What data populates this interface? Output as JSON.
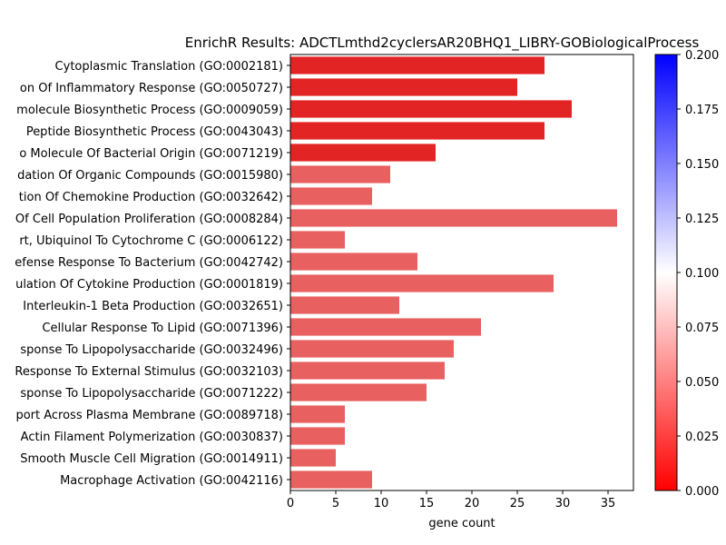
{
  "chart_data": {
    "type": "bar",
    "orientation": "horizontal",
    "title": "EnrichR Results: ADCTLmthd2cyclersAR20BHQ1_LIBRY-GOBiologicalProcess",
    "xlabel": "gene count",
    "ylabel": "",
    "xlim": [
      0,
      37.8
    ],
    "x_ticks": [
      "0",
      "5",
      "10",
      "15",
      "20",
      "25",
      "30",
      "35"
    ],
    "x_tick_values": [
      0,
      5,
      10,
      15,
      20,
      25,
      30,
      35
    ],
    "grid": false,
    "categories": [
      "Cytoplasmic Translation (GO:0002181)",
      "on Of Inflammatory Response (GO:0050727)",
      "molecule Biosynthetic Process (GO:0009059)",
      "Peptide Biosynthetic Process (GO:0043043)",
      "o Molecule Of Bacterial Origin (GO:0071219)",
      "dation Of Organic Compounds (GO:0015980)",
      "tion Of Chemokine Production (GO:0032642)",
      "Of Cell Population Proliferation (GO:0008284)",
      "rt, Ubiquinol To Cytochrome C (GO:0006122)",
      "efense Response To Bacterium (GO:0042742)",
      "ulation Of Cytokine Production (GO:0001819)",
      "Interleukin-1 Beta Production (GO:0032651)",
      "Cellular Response To Lipid (GO:0071396)",
      "sponse To Lipopolysaccharide (GO:0032496)",
      "Response To External Stimulus (GO:0032103)",
      "sponse To Lipopolysaccharide (GO:0071222)",
      "port Across Plasma Membrane (GO:0089718)",
      "Actin Filament Polymerization (GO:0030837)",
      "Smooth Muscle Cell Migration (GO:0014911)",
      "Macrophage Activation (GO:0042116)"
    ],
    "values": [
      28,
      25,
      31,
      28,
      16,
      11,
      9,
      36,
      6,
      14,
      29,
      12,
      21,
      18,
      17,
      15,
      6,
      6,
      5,
      9
    ],
    "bar_colors": [
      "#e32424",
      "#e32424",
      "#e32424",
      "#e32424",
      "#e32424",
      "#e86060",
      "#e86060",
      "#e86060",
      "#e86060",
      "#e86060",
      "#e86060",
      "#e86060",
      "#e86060",
      "#e86060",
      "#e86060",
      "#e86060",
      "#e86060",
      "#e86060",
      "#e86060",
      "#e86060"
    ],
    "colorbar": {
      "range": [
        0.0,
        0.2
      ],
      "colors": [
        "#ff0000",
        "#ffffff",
        "#0000ff"
      ],
      "ticks": [
        "0.000",
        "0.025",
        "0.050",
        "0.075",
        "0.100",
        "0.125",
        "0.150",
        "0.175",
        "0.200"
      ],
      "tick_values": [
        0.0,
        0.025,
        0.05,
        0.075,
        0.1,
        0.125,
        0.15,
        0.175,
        0.2
      ]
    }
  }
}
